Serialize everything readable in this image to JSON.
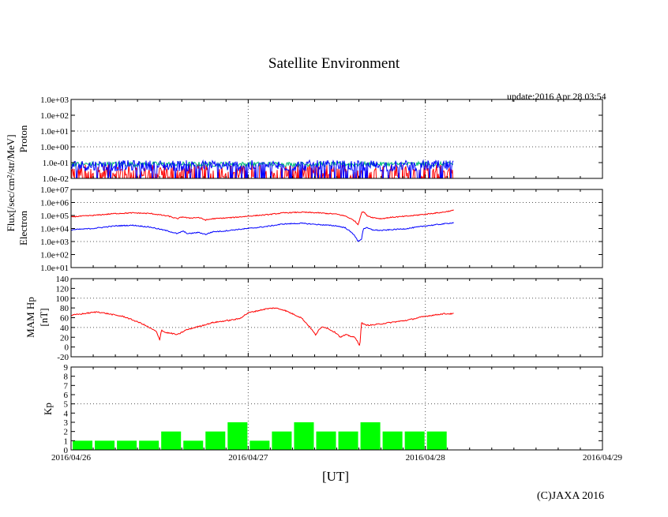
{
  "title": "Satellite Environment",
  "update": "update:2016 Apr 28 03:54",
  "copyright": "(C)JAXA 2016",
  "xlabel": "[UT]",
  "colors": {
    "proton_1": "#ff0000",
    "proton_2": "#00bb77",
    "proton_3": "#0000ff",
    "electron_high": "#ff0000",
    "electron_low": "#0000ff",
    "mam": "#ff0000",
    "kp": "#00ff00"
  },
  "chart_data": [
    {
      "type": "line",
      "name": "proton",
      "ylabel": "Proton",
      "ylabel_shared": "Flux[/sec/cm²/str/MeV]",
      "scale": "log",
      "yticks": [
        "1.0e-02",
        "1.0e-01",
        "1.0e+00",
        "1.0e+01",
        "1.0e+02",
        "1.0e+03"
      ],
      "ylim_log10": [
        -2,
        3
      ],
      "grid_log10": [
        0,
        1
      ],
      "data_end_days": 2.16,
      "series": [
        {
          "name": "proton_1",
          "typical_log10": -1.6,
          "spread": 0.5
        },
        {
          "name": "proton_2",
          "typical_log10": -1.1,
          "spread": 0.15
        },
        {
          "name": "proton_3",
          "typical_log10": -1.2,
          "spread": 0.35
        }
      ]
    },
    {
      "type": "line",
      "name": "electron",
      "ylabel": "Electron",
      "scale": "log",
      "yticks": [
        "1.0e+01",
        "1.0e+02",
        "1.0e+03",
        "1.0e+04",
        "1.0e+05",
        "1.0e+06",
        "1.0e+07"
      ],
      "ylim_log10": [
        1,
        7
      ],
      "grid_log10": [
        3,
        6
      ],
      "x_days": [
        0,
        0.12,
        0.25,
        0.35,
        0.45,
        0.55,
        0.6,
        0.63,
        0.66,
        0.72,
        0.76,
        0.8,
        0.86,
        0.92,
        1.0,
        1.1,
        1.2,
        1.3,
        1.4,
        1.5,
        1.55,
        1.6,
        1.62,
        1.64,
        1.65,
        1.67,
        1.7,
        1.75,
        1.8,
        1.9,
        2.0,
        2.1,
        2.16
      ],
      "series": [
        {
          "name": "electron_high",
          "log10": [
            4.9,
            5.0,
            5.15,
            5.2,
            5.15,
            4.95,
            4.75,
            4.9,
            4.8,
            4.85,
            4.65,
            4.75,
            4.8,
            4.85,
            4.95,
            5.05,
            5.2,
            5.25,
            5.2,
            5.1,
            4.95,
            4.6,
            4.3,
            5.2,
            5.3,
            5.0,
            4.85,
            4.75,
            4.85,
            4.95,
            5.1,
            5.25,
            5.4
          ]
        },
        {
          "name": "electron_low",
          "log10": [
            3.9,
            4.0,
            4.2,
            4.25,
            4.1,
            3.8,
            3.6,
            3.8,
            3.6,
            3.7,
            3.55,
            3.75,
            3.8,
            3.9,
            4.0,
            4.15,
            4.35,
            4.4,
            4.3,
            4.2,
            4.05,
            3.5,
            3.0,
            3.2,
            4.0,
            4.05,
            3.9,
            3.85,
            3.9,
            4.0,
            4.2,
            4.35,
            4.45
          ]
        }
      ]
    },
    {
      "type": "line",
      "name": "mam",
      "ylabel": "MAM Hp",
      "ylabel_unit": "[nT]",
      "yticks": [
        -20,
        0,
        20,
        40,
        60,
        80,
        100,
        120,
        140
      ],
      "ylim": [
        -20,
        140
      ],
      "grid": [
        40,
        100
      ],
      "x_days": [
        0,
        0.15,
        0.3,
        0.4,
        0.48,
        0.5,
        0.51,
        0.53,
        0.58,
        0.6,
        0.65,
        0.7,
        0.8,
        0.9,
        0.95,
        1.0,
        1.1,
        1.15,
        1.2,
        1.3,
        1.35,
        1.38,
        1.4,
        1.42,
        1.45,
        1.5,
        1.52,
        1.55,
        1.6,
        1.62,
        1.63,
        1.64,
        1.66,
        1.7,
        1.8,
        1.9,
        2.0,
        2.1,
        2.16
      ],
      "series": [
        {
          "name": "mam",
          "values": [
            65,
            72,
            62,
            48,
            32,
            15,
            35,
            30,
            27,
            25,
            35,
            40,
            50,
            55,
            58,
            70,
            78,
            80,
            76,
            60,
            40,
            25,
            35,
            42,
            38,
            28,
            20,
            25,
            20,
            10,
            2,
            50,
            45,
            45,
            50,
            55,
            63,
            68,
            68
          ]
        }
      ]
    },
    {
      "type": "bar",
      "name": "kp",
      "ylabel": "Kp",
      "yticks": [
        0,
        1,
        2,
        3,
        4,
        5,
        6,
        7,
        8,
        9
      ],
      "ylim": [
        0,
        9
      ],
      "grid": [
        5
      ],
      "bar_width_days": 0.125,
      "values": [
        1,
        1,
        1,
        1,
        2,
        1,
        2,
        3,
        1,
        2,
        3,
        2,
        2,
        3,
        2,
        2,
        2
      ]
    }
  ],
  "xaxis": {
    "ticks": [
      "2016/04/26",
      "2016/04/27",
      "2016/04/28",
      "2016/04/29"
    ],
    "range_days": [
      0,
      3
    ],
    "grid_days": [
      1,
      2
    ]
  }
}
